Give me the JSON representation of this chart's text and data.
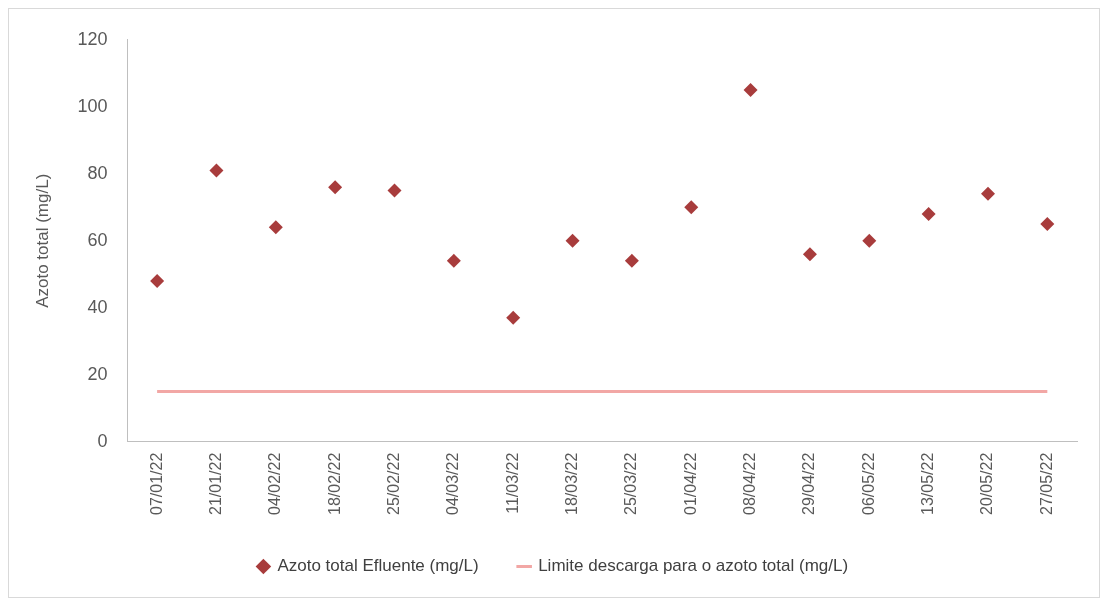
{
  "chart_data": {
    "type": "scatter",
    "ylabel": "Azoto total (mg/L)",
    "categories": [
      "07/01/22",
      "21/01/22",
      "04/02/22",
      "18/02/22",
      "25/02/22",
      "04/03/22",
      "11/03/22",
      "18/03/22",
      "25/03/22",
      "01/04/22",
      "08/04/22",
      "29/04/22",
      "06/05/22",
      "13/05/22",
      "20/05/22",
      "27/05/22"
    ],
    "series": [
      {
        "name": "Azoto total Efluente (mg/L)",
        "marker": "diamond",
        "color": "#a83c3c",
        "values": [
          48,
          81,
          64,
          76,
          75,
          54,
          37,
          60,
          54,
          70,
          105,
          56,
          60,
          68,
          74,
          65
        ]
      },
      {
        "name": "Limite descarga para o azoto total (mg/L)",
        "type": "line",
        "marker": "none",
        "line_style": "solid",
        "color": "#f2a7a5",
        "values": [
          15,
          15,
          15,
          15,
          15,
          15,
          15,
          15,
          15,
          15,
          15,
          15,
          15,
          15,
          15,
          15
        ]
      }
    ],
    "ylim": [
      0,
      120
    ],
    "yticks": [
      0,
      20,
      40,
      60,
      80,
      100,
      120
    ],
    "grid": false,
    "legend": "bottom"
  }
}
